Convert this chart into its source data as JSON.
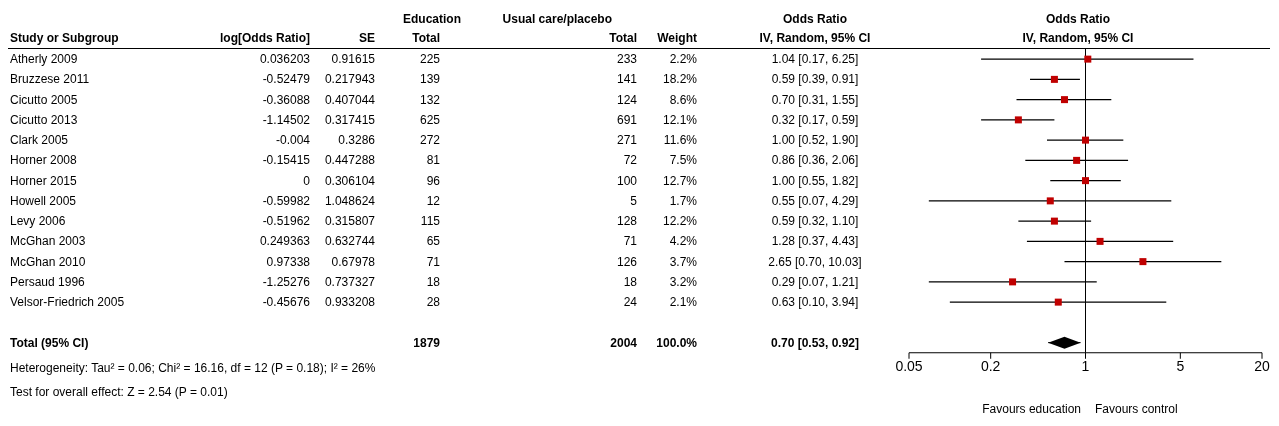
{
  "chart_data": [
    {
      "type": "other",
      "categories": [
        "Atherly 2009",
        "Bruzzese 2011",
        "Cicutto 2005",
        "Cicutto 2013",
        "Clark 2005",
        "Horner 2008",
        "Horner 2015",
        "Howell 2005",
        "Levy 2006",
        "McGhan 2003",
        "McGhan 2010",
        "Persaud 1996",
        "Velsor-Friedrich 2005",
        null,
        "Total (95% CI)"
      ],
      "series": [
        {
          "name": "log[Odds Ratio]",
          "values": [
            0.036203,
            -0.52479,
            -0.36088,
            -1.14502,
            -0.004,
            -0.15415,
            0,
            -0.59982,
            -0.51962,
            0.249363,
            0.97338,
            -1.25276,
            -0.45676,
            null,
            null
          ],
          "value_labels": [
            "0.036203",
            "-0.52479",
            "-0.36088",
            "-1.14502",
            "-0.004",
            "-0.15415",
            "0",
            "-0.59982",
            "-0.51962",
            "0.249363",
            "0.97338",
            "-1.25276",
            "-0.45676",
            null,
            null
          ]
        },
        {
          "name": "SE",
          "values": [
            0.91615,
            0.217943,
            0.407044,
            0.317415,
            0.3286,
            0.447288,
            0.306104,
            1.048624,
            0.315807,
            0.632744,
            0.67978,
            0.737327,
            0.933208,
            null,
            null
          ],
          "value_labels": [
            "0.91615",
            "0.217943",
            "0.407044",
            "0.317415",
            "0.3286",
            "0.447288",
            "0.306104",
            "1.048624",
            "0.315807",
            "0.632744",
            "0.67978",
            "0.737327",
            "0.933208",
            null,
            null
          ]
        },
        {
          "name": "Total",
          "values": [
            225,
            139,
            132,
            625,
            272,
            81,
            96,
            12,
            115,
            65,
            71,
            18,
            28,
            null,
            1879
          ],
          "value_labels": [
            "225",
            "139",
            "132",
            "625",
            "272",
            "81",
            "96",
            "12",
            "115",
            "65",
            "71",
            "18",
            "28",
            null,
            "1879"
          ]
        },
        {
          "name": "Total",
          "values": [
            233,
            141,
            124,
            691,
            271,
            72,
            100,
            5,
            128,
            71,
            126,
            18,
            24,
            null,
            2004
          ],
          "value_labels": [
            "233",
            "141",
            "124",
            "691",
            "271",
            "72",
            "100",
            "5",
            "128",
            "71",
            "126",
            "18",
            "24",
            null,
            "2004"
          ]
        },
        {
          "name": "Weight",
          "values": [
            2.2,
            18.2,
            8.6,
            12.1,
            11.6,
            7.5,
            12.7,
            1.7,
            12.2,
            4.2,
            3.7,
            3.2,
            2.1,
            null,
            100.0
          ],
          "value_labels": [
            "2.2%",
            "18.2%",
            "8.6%",
            "12.1%",
            "11.6%",
            "7.5%",
            "12.7%",
            "1.7%",
            "12.2%",
            "4.2%",
            "3.7%",
            "3.2%",
            "2.1%",
            null,
            "100.0%"
          ]
        },
        {
          "name": "IV, Random, 95% CI",
          "values": [
            1.04,
            0.59,
            0.7,
            0.32,
            1.0,
            0.86,
            1.0,
            0.55,
            0.59,
            1.28,
            2.65,
            0.29,
            0.63,
            null,
            0.7
          ],
          "value_labels": [
            "1.04 [0.17, 6.25]",
            "0.59 [0.39, 0.91]",
            "0.70 [0.31, 1.55]",
            "0.32 [0.17, 0.59]",
            "1.00 [0.52, 1.90]",
            "0.86 [0.36, 2.06]",
            "1.00 [0.55, 1.82]",
            "0.55 [0.07, 4.29]",
            "0.59 [0.32, 1.10]",
            "1.28 [0.37, 4.43]",
            "2.65 [0.70, 10.03]",
            "0.29 [0.07, 1.21]",
            "0.63 [0.10, 3.94]",
            null,
            "0.70 [0.53, 0.92]"
          ]
        }
      ],
      "annotations": [
        "Study or Subgroup",
        "Education",
        "Usual care/placebo",
        "Odds Ratio",
        "Heterogeneity: Tau² = 0.06; Chi² = 16.16, df = 12 (P = 0.18); I² = 26%",
        "Test for overall effect: Z = 2.54 (P = 0.01)"
      ]
    },
    {
      "type": "scatter",
      "orientation": "horizontal",
      "log": "x",
      "title": "Odds Ratio",
      "subtitle": "IV, Random, 95% CI",
      "series": [
        {
          "color": "#c00000",
          "marker": "square",
          "values": [
            1.04,
            0.59,
            0.7,
            0.32,
            1.0,
            0.86,
            1.0,
            0.55,
            0.59,
            1.28,
            2.65,
            0.29,
            0.63,
            null,
            null
          ],
          "errors": [
            [
              0.17,
              6.25
            ],
            [
              0.39,
              0.91
            ],
            [
              0.31,
              1.55
            ],
            [
              0.17,
              0.59
            ],
            [
              0.52,
              1.9
            ],
            [
              0.36,
              2.06
            ],
            [
              0.55,
              1.82
            ],
            [
              0.07,
              4.29
            ],
            [
              0.32,
              1.1
            ],
            [
              0.37,
              4.43
            ],
            [
              0.7,
              10.03
            ],
            [
              0.07,
              1.21
            ],
            [
              0.1,
              3.94
            ],
            null,
            null
          ]
        },
        {
          "color": "#000000",
          "marker": "diamond",
          "values": [
            null,
            null,
            null,
            null,
            null,
            null,
            null,
            null,
            null,
            null,
            null,
            null,
            null,
            null,
            0.7
          ],
          "errors": [
            null,
            null,
            null,
            null,
            null,
            null,
            null,
            null,
            null,
            null,
            null,
            null,
            null,
            null,
            [
              0.53,
              0.92
            ]
          ]
        }
      ],
      "xlim": [
        0.05,
        20
      ],
      "xticks": [
        0.05,
        0.2,
        1,
        5,
        20
      ],
      "ref_lines": [
        {
          "axis": "x",
          "value": 1,
          "color": "#000000"
        }
      ],
      "annotations": [
        "Favours education",
        "Favours control"
      ]
    }
  ]
}
